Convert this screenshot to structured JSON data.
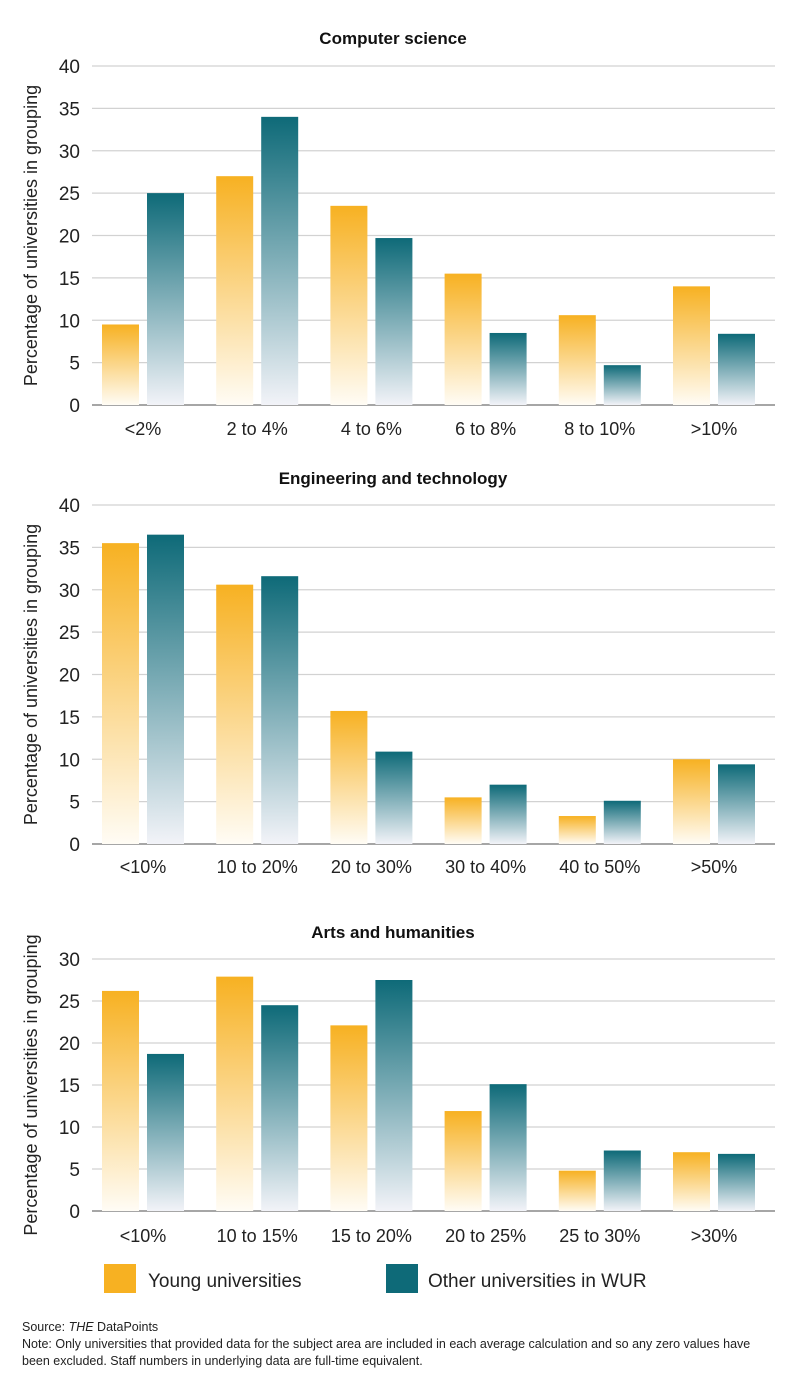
{
  "chart_data": [
    {
      "type": "bar",
      "title": "Computer science",
      "ylabel": "Percentage of universities in grouping",
      "ylim": [
        0,
        40
      ],
      "yticks": [
        0,
        5,
        10,
        15,
        20,
        25,
        30,
        35,
        40
      ],
      "grid": true,
      "categories": [
        "<2%",
        "2 to 4%",
        "4 to 6%",
        "6 to 8%",
        "8 to 10%",
        ">10%"
      ],
      "series": [
        {
          "name": "Young universities",
          "values": [
            9.5,
            27,
            23.5,
            15.5,
            10.6,
            14
          ]
        },
        {
          "name": "Other universities in WUR",
          "values": [
            25,
            34,
            19.7,
            8.5,
            4.7,
            8.4
          ]
        }
      ]
    },
    {
      "type": "bar",
      "title": "Engineering and technology",
      "ylabel": "Percentage of universities in grouping",
      "ylim": [
        0,
        40
      ],
      "yticks": [
        0,
        5,
        10,
        15,
        20,
        25,
        30,
        35,
        40
      ],
      "grid": true,
      "categories": [
        "<10%",
        "10 to 20%",
        "20 to 30%",
        "30 to 40%",
        "40 to 50%",
        ">50%"
      ],
      "series": [
        {
          "name": "Young universities",
          "values": [
            35.5,
            30.6,
            15.7,
            5.5,
            3.3,
            10
          ]
        },
        {
          "name": "Other universities in WUR",
          "values": [
            36.5,
            31.6,
            10.9,
            7,
            5.1,
            9.4
          ]
        }
      ]
    },
    {
      "type": "bar",
      "title": "Arts and humanities",
      "ylabel": "Percentage of universities in grouping",
      "ylim": [
        0,
        30
      ],
      "yticks": [
        0,
        5,
        10,
        15,
        20,
        25,
        30
      ],
      "grid": true,
      "categories": [
        "<10%",
        "10 to 15%",
        "15 to 20%",
        "20 to 25%",
        "25 to 30%",
        ">30%"
      ],
      "series": [
        {
          "name": "Young universities",
          "values": [
            26.2,
            27.9,
            22.1,
            11.9,
            4.8,
            7.0
          ]
        },
        {
          "name": "Other universities in WUR",
          "values": [
            18.7,
            24.5,
            27.5,
            15.1,
            7.2,
            6.8
          ]
        }
      ]
    }
  ],
  "legend": {
    "placement": "bottom",
    "items": [
      {
        "label": "Young universities",
        "color": "#f7b122"
      },
      {
        "label": "Other universities in WUR",
        "color": "#0e6a78"
      }
    ]
  },
  "source": {
    "prefix": "Source: ",
    "italic": "THE",
    "suffix": " DataPoints"
  },
  "note": "Note: Only universities that provided data for the subject area are included in each average calculation and so any zero values have been excluded. Staff numbers in underlying data are full-time equivalent."
}
